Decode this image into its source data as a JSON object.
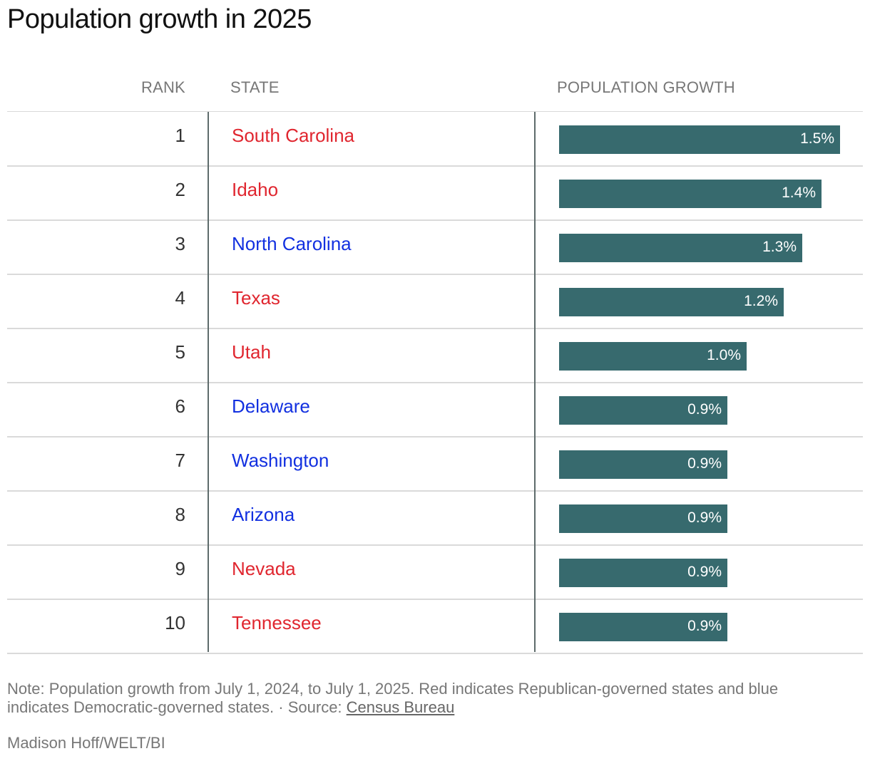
{
  "title": "Population growth in 2025",
  "headers": {
    "rank": "RANK",
    "state": "STATE",
    "growth": "POPULATION GROWTH"
  },
  "colors": {
    "republican": "#e0262f",
    "democratic": "#1230e0",
    "bar": "#376a6e"
  },
  "chart_data": {
    "type": "bar",
    "orientation": "horizontal",
    "xlim": [
      0,
      1.5
    ],
    "rows": [
      {
        "rank": "1",
        "state": "South Carolina",
        "party": "republican",
        "value": 1.5,
        "label": "1.5%"
      },
      {
        "rank": "2",
        "state": "Idaho",
        "party": "republican",
        "value": 1.4,
        "label": "1.4%"
      },
      {
        "rank": "3",
        "state": "North Carolina",
        "party": "democratic",
        "value": 1.3,
        "label": "1.3%"
      },
      {
        "rank": "4",
        "state": "Texas",
        "party": "republican",
        "value": 1.2,
        "label": "1.2%"
      },
      {
        "rank": "5",
        "state": "Utah",
        "party": "republican",
        "value": 1.0,
        "label": "1.0%"
      },
      {
        "rank": "6",
        "state": "Delaware",
        "party": "democratic",
        "value": 0.9,
        "label": "0.9%"
      },
      {
        "rank": "7",
        "state": "Washington",
        "party": "democratic",
        "value": 0.9,
        "label": "0.9%"
      },
      {
        "rank": "8",
        "state": "Arizona",
        "party": "democratic",
        "value": 0.9,
        "label": "0.9%"
      },
      {
        "rank": "9",
        "state": "Nevada",
        "party": "republican",
        "value": 0.9,
        "label": "0.9%"
      },
      {
        "rank": "10",
        "state": "Tennessee",
        "party": "republican",
        "value": 0.9,
        "label": "0.9%"
      }
    ]
  },
  "footer": {
    "note_line1": "Note: Population growth from July 1, 2024, to July 1, 2025. Red indicates Republican-governed states and blue",
    "note_line2": "indicates Democratic-governed states.",
    "source_prefix": " · Source: ",
    "source_link": "Census Bureau",
    "credit": "Madison Hoff/WELT/BI"
  }
}
